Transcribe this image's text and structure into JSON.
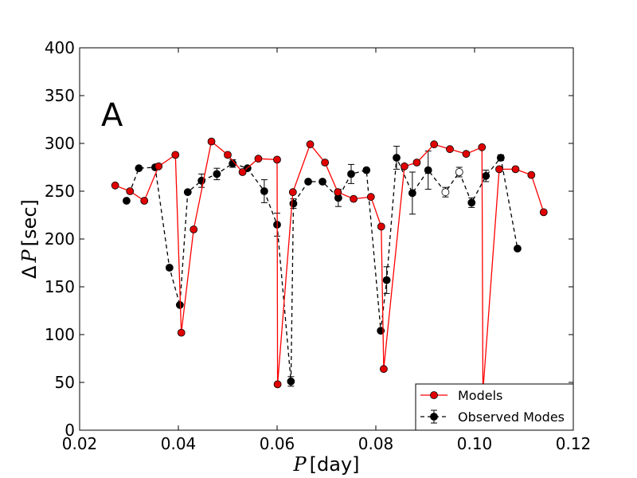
{
  "chart_data": {
    "type": "line",
    "panel_label": "A",
    "xlabel_var": "P",
    "xlabel_unit": "[day]",
    "ylabel_prefix": "Δ",
    "ylabel_var": "P",
    "ylabel_unit": "[sec]",
    "xlim": [
      0.02,
      0.12
    ],
    "ylim": [
      0,
      400
    ],
    "xticks": [
      "0.02",
      "0.04",
      "0.06",
      "0.08",
      "0.10",
      "0.12"
    ],
    "yticks": [
      "0",
      "50",
      "100",
      "150",
      "200",
      "250",
      "300",
      "350",
      "400"
    ],
    "legend_position": "lower-right",
    "series": [
      {
        "name": "Models",
        "color": "#ff0000",
        "marker_color": "#e00000",
        "linestyle": "solid",
        "x": [
          0.0272,
          0.0302,
          0.0331,
          0.036,
          0.0394,
          0.0406,
          0.0431,
          0.0467,
          0.05,
          0.053,
          0.0562,
          0.06,
          0.0601,
          0.0632,
          0.0667,
          0.0697,
          0.0723,
          0.0755,
          0.079,
          0.0811,
          0.0816,
          0.0858,
          0.0883,
          0.0918,
          0.095,
          0.0983,
          0.1015,
          0.1017,
          0.105,
          0.1083,
          0.1115,
          0.114
        ],
        "y": [
          256,
          250,
          240,
          276,
          288,
          102,
          210,
          302,
          288,
          270,
          284,
          283,
          48,
          249,
          299,
          280,
          249,
          242,
          244,
          213,
          64,
          276,
          280,
          299,
          294,
          289,
          296,
          40,
          273,
          273,
          267,
          228
        ]
      },
      {
        "name": "Observed Modes",
        "color": "#000000",
        "marker_color": "#000000",
        "linestyle": "dashed",
        "x": [
          0.0295,
          0.032,
          0.0353,
          0.0382,
          0.0403,
          0.0419,
          0.0447,
          0.0478,
          0.051,
          0.054,
          0.0574,
          0.06,
          0.0628,
          0.0633,
          0.0663,
          0.0692,
          0.0724,
          0.075,
          0.0781,
          0.081,
          0.0822,
          0.0842,
          0.0874,
          0.0906,
          0.0941,
          0.0969,
          0.0994,
          0.1023,
          0.1053,
          0.1087
        ],
        "y": [
          240,
          274,
          275,
          170,
          131,
          249,
          261,
          268,
          279,
          274,
          250,
          215,
          51,
          237,
          260,
          260,
          243,
          268,
          272,
          104,
          157,
          285,
          248,
          272,
          249,
          270,
          238,
          266,
          285,
          190
        ],
        "yerr": [
          0,
          0,
          0,
          0,
          0,
          0,
          7,
          6,
          4,
          0,
          12,
          12,
          5,
          5,
          0,
          0,
          9,
          10,
          0,
          0,
          14,
          12,
          22,
          20,
          5,
          5,
          5,
          6,
          3,
          0
        ],
        "hollow": [
          false,
          false,
          false,
          false,
          false,
          false,
          false,
          false,
          false,
          false,
          false,
          false,
          false,
          false,
          false,
          false,
          false,
          false,
          false,
          false,
          false,
          false,
          false,
          false,
          true,
          true,
          false,
          false,
          false,
          false
        ]
      }
    ]
  }
}
